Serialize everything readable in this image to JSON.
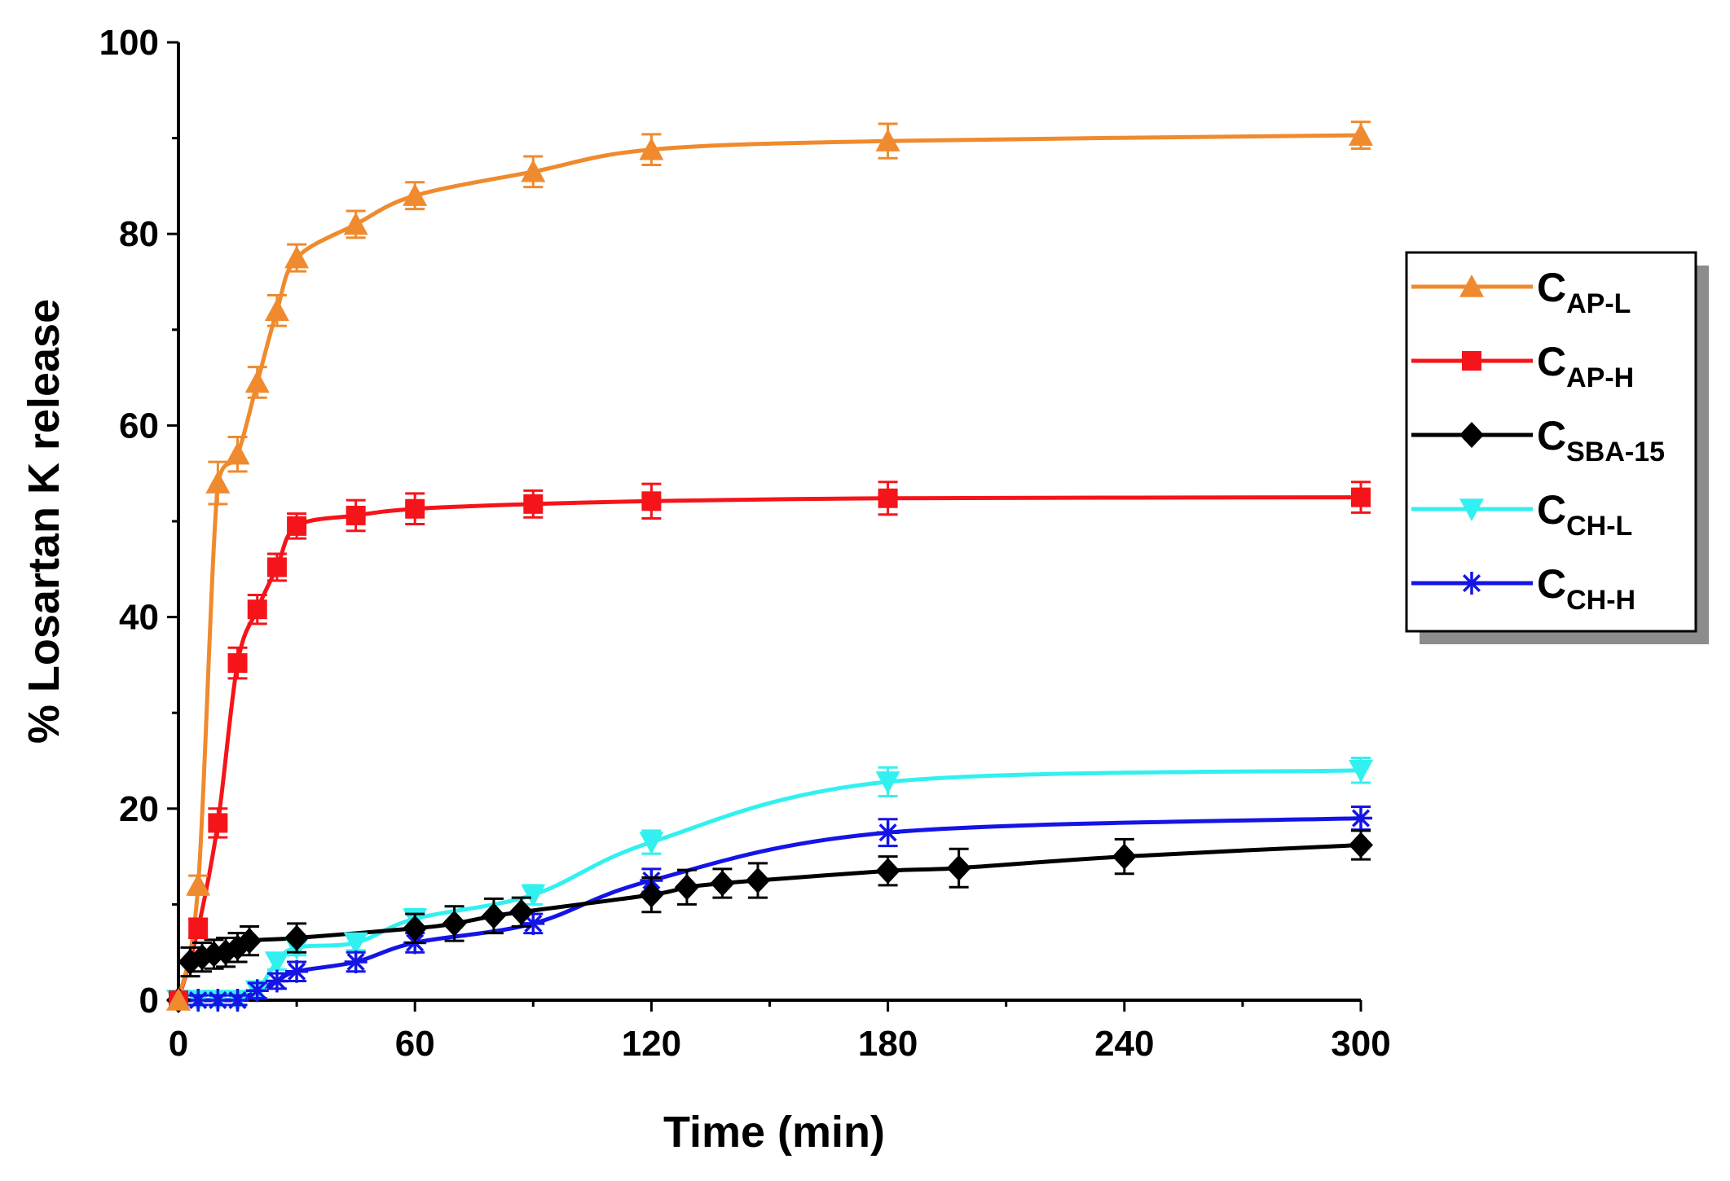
{
  "chart_data": {
    "type": "line",
    "title": "",
    "xlabel": "Time (min)",
    "ylabel": "% Losartan K release",
    "xlim": [
      0,
      300
    ],
    "ylim": [
      0,
      100
    ],
    "xticks": [
      0,
      60,
      120,
      180,
      240,
      300
    ],
    "yticks": [
      0,
      20,
      40,
      60,
      80,
      100
    ],
    "xtick_labels": [
      "0",
      "60",
      "120",
      "180",
      "240",
      "300"
    ],
    "ytick_labels": [
      "0",
      "20",
      "40",
      "60",
      "80",
      "100"
    ],
    "grid": false,
    "legend_position": "right",
    "series": [
      {
        "name": "CAP-L",
        "label_main": "C",
        "label_sub": "AP-L",
        "color": "#ef8a2e",
        "marker": "triangle-up",
        "x": [
          0,
          5,
          10,
          15,
          20,
          25,
          30,
          45,
          60,
          90,
          120,
          180,
          300
        ],
        "y": [
          0,
          12,
          54,
          57,
          64.5,
          72,
          77.5,
          81,
          84,
          86.5,
          88.8,
          89.7,
          90.3
        ],
        "err": [
          0,
          1,
          2.2,
          1.8,
          1.6,
          1.6,
          1.4,
          1.4,
          1.4,
          1.6,
          1.6,
          1.8,
          1.4
        ]
      },
      {
        "name": "CAP-H",
        "label_main": "C",
        "label_sub": "AP-H",
        "color": "#f5141a",
        "marker": "square",
        "x": [
          0,
          5,
          10,
          15,
          20,
          25,
          30,
          45,
          60,
          90,
          120,
          180,
          300
        ],
        "y": [
          0,
          7.5,
          18.5,
          35.2,
          40.8,
          45.2,
          49.5,
          50.6,
          51.3,
          51.8,
          52.1,
          52.4,
          52.5
        ],
        "err": [
          0,
          1,
          1.5,
          1.6,
          1.5,
          1.4,
          1.3,
          1.6,
          1.6,
          1.4,
          1.8,
          1.7,
          1.6
        ]
      },
      {
        "name": "CSBA-15",
        "label_main": "C",
        "label_sub": "SBA-15",
        "color": "#000000",
        "marker": "diamond",
        "x": [
          0,
          3,
          6,
          9,
          12,
          15,
          18,
          30,
          60,
          70,
          80,
          87,
          120,
          129,
          138,
          147,
          180,
          198,
          240,
          300
        ],
        "y": [
          0,
          4,
          4.5,
          4.8,
          5,
          5.5,
          6.2,
          6.5,
          7.5,
          8,
          8.8,
          9.2,
          11,
          11.8,
          12.2,
          12.5,
          13.5,
          13.8,
          15,
          16.2
        ],
        "err": [
          0,
          1.5,
          1.5,
          1.5,
          1.5,
          1.5,
          1.5,
          1.5,
          1.5,
          1.8,
          1.8,
          1.5,
          1.8,
          1.8,
          1.5,
          1.8,
          1.5,
          2,
          1.8,
          1.5
        ]
      },
      {
        "name": "CCH-L",
        "label_main": "C",
        "label_sub": "CH-L",
        "color": "#33f0f0",
        "marker": "triangle-down",
        "x": [
          0,
          5,
          10,
          15,
          20,
          25,
          30,
          45,
          60,
          90,
          120,
          180,
          300
        ],
        "y": [
          0,
          0,
          0,
          0,
          1,
          4,
          5.5,
          6,
          8.5,
          11,
          16.5,
          22.8,
          24
        ],
        "err": [
          0,
          0.5,
          0.5,
          0.5,
          0.8,
          0.8,
          0.8,
          0.8,
          1,
          1,
          1.2,
          1.5,
          1.3
        ]
      },
      {
        "name": "CCH-H",
        "label_main": "C",
        "label_sub": "CH-H",
        "color": "#1414e6",
        "marker": "asterisk",
        "x": [
          0,
          5,
          10,
          15,
          20,
          25,
          30,
          45,
          60,
          90,
          120,
          180,
          300
        ],
        "y": [
          0,
          0,
          0,
          0,
          1,
          2,
          3,
          4,
          6,
          8,
          12.5,
          17.5,
          19
        ],
        "err": [
          0,
          0.5,
          0.5,
          0.5,
          0.8,
          0.8,
          1,
          1,
          1,
          1,
          1.2,
          1.4,
          1.2
        ]
      }
    ]
  }
}
